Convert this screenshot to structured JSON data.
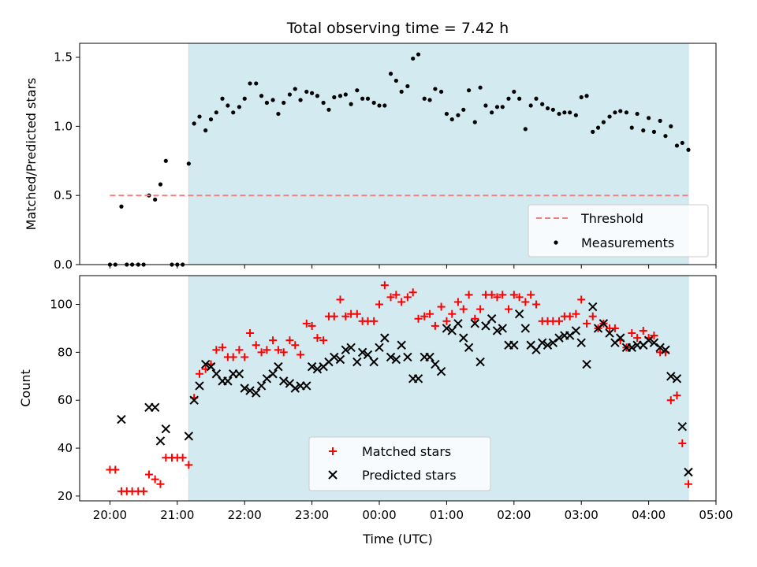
{
  "chart_data": [
    {
      "type": "scatter",
      "title": "Total observing time = 7.42 h",
      "ylabel": "Matched/Predicted stars",
      "xlabel": "",
      "ylim": [
        0,
        1.6
      ],
      "yticks": [
        0.0,
        0.5,
        1.0,
        1.5
      ],
      "ytick_labels": [
        "0.0",
        "0.5",
        "1.0",
        "1.5"
      ],
      "x_unit": "hours from 20:00 UTC",
      "xlim": [
        -0.45,
        9.0
      ],
      "observing_window": [
        1.17,
        8.59
      ],
      "shade_color": "#d3eaf0",
      "threshold": {
        "value": 0.5,
        "x_range": [
          0.0,
          8.59
        ],
        "color": "#f08080"
      },
      "legend": {
        "placement": "lower-right",
        "items": [
          "Threshold",
          "Measurements"
        ]
      },
      "series": [
        {
          "name": "Measurements",
          "color": "#000000",
          "x": [
            0.0,
            0.08,
            0.17,
            0.25,
            0.33,
            0.42,
            0.5,
            0.58,
            0.67,
            0.75,
            0.83,
            0.92,
            1.0,
            1.08,
            1.17,
            1.25,
            1.33,
            1.42,
            1.5,
            1.58,
            1.67,
            1.75,
            1.83,
            1.92,
            2.0,
            2.08,
            2.17,
            2.25,
            2.33,
            2.42,
            2.5,
            2.58,
            2.67,
            2.75,
            2.83,
            2.92,
            3.0,
            3.08,
            3.17,
            3.25,
            3.33,
            3.42,
            3.5,
            3.58,
            3.67,
            3.75,
            3.83,
            3.92,
            4.0,
            4.08,
            4.17,
            4.25,
            4.33,
            4.42,
            4.5,
            4.58,
            4.67,
            4.75,
            4.83,
            4.92,
            5.0,
            5.08,
            5.17,
            5.25,
            5.33,
            5.42,
            5.5,
            5.58,
            5.67,
            5.75,
            5.83,
            5.92,
            6.0,
            6.08,
            6.17,
            6.25,
            6.33,
            6.42,
            6.5,
            6.58,
            6.67,
            6.75,
            6.83,
            6.92,
            7.0,
            7.08,
            7.17,
            7.25,
            7.33,
            7.42,
            7.5,
            7.58,
            7.67,
            7.75,
            7.83,
            7.92,
            8.0,
            8.08,
            8.17,
            8.25,
            8.33,
            8.42,
            8.5,
            8.59
          ],
          "y": [
            0,
            0,
            0.42,
            0,
            0,
            0,
            0,
            0.5,
            0.47,
            0.58,
            0.75,
            0,
            0,
            0,
            0.73,
            1.02,
            1.07,
            0.97,
            1.05,
            1.1,
            1.2,
            1.15,
            1.1,
            1.14,
            1.2,
            1.31,
            1.31,
            1.22,
            1.17,
            1.19,
            1.09,
            1.17,
            1.23,
            1.27,
            1.19,
            1.25,
            1.24,
            1.22,
            1.17,
            1.12,
            1.21,
            1.22,
            1.23,
            1.16,
            1.26,
            1.2,
            1.2,
            1.17,
            1.15,
            1.15,
            1.38,
            1.33,
            1.25,
            1.29,
            1.49,
            1.52,
            1.2,
            1.19,
            1.27,
            1.25,
            1.09,
            1.05,
            1.08,
            1.12,
            1.26,
            1.03,
            1.28,
            1.15,
            1.1,
            1.14,
            1.14,
            1.2,
            1.25,
            1.2,
            0.98,
            1.15,
            1.2,
            1.16,
            1.13,
            1.12,
            1.09,
            1.1,
            1.1,
            1.08,
            1.21,
            1.22,
            0.96,
            0.99,
            1.03,
            1.07,
            1.1,
            1.11,
            1.1,
            0.99,
            1.09,
            0.97,
            1.06,
            0.96,
            1.04,
            0.93,
            1.0,
            0.86,
            0.88,
            0.83
          ]
        }
      ]
    },
    {
      "type": "scatter",
      "title": "",
      "ylabel": "Count",
      "xlabel": "Time (UTC)",
      "ylim": [
        18.0,
        112.0
      ],
      "yticks": [
        20,
        40,
        60,
        80,
        100
      ],
      "ytick_labels": [
        "20",
        "40",
        "60",
        "80",
        "100"
      ],
      "x_unit": "hours from 20:00 UTC",
      "xlim": [
        -0.45,
        9.0
      ],
      "xticks": [
        0,
        1,
        2,
        3,
        4,
        5,
        6,
        7,
        8,
        9
      ],
      "xtick_labels": [
        "20:00",
        "21:00",
        "22:00",
        "23:00",
        "00:00",
        "01:00",
        "02:00",
        "03:00",
        "04:00",
        "05:00"
      ],
      "observing_window": [
        1.17,
        8.59
      ],
      "shade_color": "#d3eaf0",
      "legend": {
        "placement": "lower-center",
        "items": [
          "Matched stars",
          "Predicted stars"
        ]
      },
      "series": [
        {
          "name": "Matched stars",
          "marker": "plus",
          "color": "#ff0000",
          "x": [
            0.0,
            0.08,
            0.17,
            0.25,
            0.33,
            0.42,
            0.5,
            0.58,
            0.67,
            0.75,
            0.83,
            0.92,
            1.0,
            1.08,
            1.17,
            1.25,
            1.33,
            1.42,
            1.5,
            1.58,
            1.67,
            1.75,
            1.83,
            1.92,
            2.0,
            2.08,
            2.17,
            2.25,
            2.33,
            2.42,
            2.5,
            2.58,
            2.67,
            2.75,
            2.83,
            2.92,
            3.0,
            3.08,
            3.17,
            3.25,
            3.33,
            3.42,
            3.5,
            3.58,
            3.67,
            3.75,
            3.83,
            3.92,
            4.0,
            4.08,
            4.17,
            4.25,
            4.33,
            4.42,
            4.5,
            4.58,
            4.67,
            4.75,
            4.83,
            4.92,
            5.0,
            5.08,
            5.17,
            5.25,
            5.33,
            5.42,
            5.5,
            5.58,
            5.67,
            5.75,
            5.83,
            5.92,
            6.0,
            6.08,
            6.17,
            6.25,
            6.33,
            6.42,
            6.5,
            6.58,
            6.67,
            6.75,
            6.83,
            6.92,
            7.0,
            7.08,
            7.17,
            7.25,
            7.33,
            7.42,
            7.5,
            7.58,
            7.67,
            7.75,
            7.83,
            7.92,
            8.0,
            8.08,
            8.17,
            8.25,
            8.33,
            8.42,
            8.5,
            8.59
          ],
          "y": [
            31,
            31,
            22,
            22,
            22,
            22,
            22,
            29,
            27,
            25,
            36,
            36,
            36,
            36,
            33,
            61,
            71,
            73,
            75,
            81,
            82,
            78,
            78,
            81,
            78,
            88,
            83,
            80,
            81,
            85,
            81,
            80,
            85,
            83,
            79,
            92,
            91,
            86,
            85,
            95,
            95,
            102,
            95,
            96,
            96,
            93,
            93,
            93,
            100,
            108,
            103,
            104,
            101,
            103,
            105,
            94,
            95,
            96,
            91,
            99,
            93,
            96,
            101,
            98,
            104,
            94,
            98,
            104,
            104,
            103,
            104,
            98,
            104,
            103,
            101,
            104,
            100,
            93,
            93,
            93,
            93,
            95,
            95,
            96,
            102,
            92,
            95,
            90,
            92,
            90,
            90,
            85,
            82,
            88,
            86,
            89,
            86,
            87,
            80,
            80,
            60,
            62,
            42,
            25
          ]
        },
        {
          "name": "Predicted stars",
          "marker": "x",
          "color": "#000000",
          "x": [
            0.17,
            0.58,
            0.67,
            0.75,
            0.83,
            1.17,
            1.25,
            1.33,
            1.42,
            1.5,
            1.58,
            1.67,
            1.75,
            1.83,
            1.92,
            2.0,
            2.08,
            2.17,
            2.25,
            2.33,
            2.42,
            2.5,
            2.58,
            2.67,
            2.75,
            2.83,
            2.92,
            3.0,
            3.08,
            3.17,
            3.25,
            3.33,
            3.42,
            3.5,
            3.58,
            3.67,
            3.75,
            3.83,
            3.92,
            4.0,
            4.08,
            4.17,
            4.25,
            4.33,
            4.42,
            4.5,
            4.58,
            4.67,
            4.75,
            4.83,
            4.92,
            5.0,
            5.08,
            5.17,
            5.25,
            5.33,
            5.42,
            5.5,
            5.58,
            5.67,
            5.75,
            5.83,
            5.92,
            6.0,
            6.08,
            6.17,
            6.25,
            6.33,
            6.42,
            6.5,
            6.58,
            6.67,
            6.75,
            6.83,
            6.92,
            7.0,
            7.08,
            7.17,
            7.25,
            7.33,
            7.42,
            7.5,
            7.58,
            7.67,
            7.75,
            7.83,
            7.92,
            8.0,
            8.08,
            8.17,
            8.25,
            8.33,
            8.42,
            8.5,
            8.59
          ],
          "y": [
            52,
            57,
            57,
            43,
            48,
            45,
            60,
            66,
            75,
            74,
            71,
            68,
            68,
            71,
            71,
            65,
            64,
            63,
            66,
            69,
            71,
            74,
            68,
            67,
            65,
            66,
            66,
            74,
            73,
            74,
            76,
            78,
            77,
            81,
            82,
            76,
            80,
            79,
            76,
            82,
            86,
            78,
            77,
            83,
            78,
            69,
            69,
            78,
            78,
            75,
            72,
            90,
            89,
            92,
            86,
            82,
            92,
            76,
            91,
            94,
            89,
            90,
            83,
            83,
            96,
            90,
            83,
            81,
            84,
            83,
            84,
            86,
            87,
            87,
            89,
            84,
            75,
            99,
            90,
            92,
            88,
            84,
            86,
            82,
            82,
            83,
            83,
            85,
            84,
            82,
            81,
            70,
            69,
            49,
            30
          ]
        }
      ]
    }
  ]
}
